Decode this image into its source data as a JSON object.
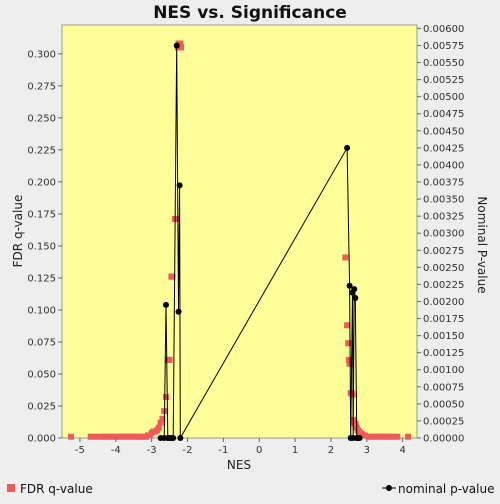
{
  "chart_data": {
    "type": "scatter",
    "title": "NES vs. Significance",
    "xlabel": "NES",
    "ylabel_left": "FDR q-value",
    "ylabel_right": "Nominal P-value",
    "xlim": [
      -5.5,
      4.4
    ],
    "ylim_left": [
      0,
      0.3225
    ],
    "ylim_right": [
      0,
      0.00605
    ],
    "x_ticks": [
      -5,
      -4,
      -3,
      -2,
      -1,
      0,
      1,
      2,
      3,
      4
    ],
    "y_left_ticks": [
      "0.000",
      "0.025",
      "0.050",
      "0.075",
      "0.100",
      "0.125",
      "0.150",
      "0.175",
      "0.200",
      "0.225",
      "0.250",
      "0.275",
      "0.300"
    ],
    "y_right_ticks": [
      "0.00000",
      "0.00025",
      "0.00050",
      "0.00075",
      "0.00100",
      "0.00125",
      "0.00150",
      "0.00175",
      "0.00200",
      "0.00225",
      "0.00250",
      "0.00275",
      "0.00300",
      "0.00325",
      "0.00350",
      "0.00375",
      "0.00400",
      "0.00425",
      "0.00450",
      "0.00475",
      "0.00500",
      "0.00525",
      "0.00550",
      "0.00575",
      "0.00600"
    ],
    "plot_background": "#ffff99",
    "grid": false,
    "legend_placement": "bottom",
    "series": [
      {
        "name": "FDR q-value",
        "axis": "left",
        "style": "square-markers",
        "color": "#f25a5a",
        "x": [
          -5.25,
          -4.7,
          -4.55,
          -4.4,
          -4.3,
          -4.2,
          -4.1,
          -4.0,
          -3.9,
          -3.8,
          -3.7,
          -3.6,
          -3.5,
          -3.4,
          -3.3,
          -3.2,
          -3.15,
          -3.1,
          -3.05,
          -3.0,
          -2.95,
          -2.9,
          -2.85,
          -2.8,
          -2.75,
          -2.7,
          -2.65,
          -2.6,
          -2.55,
          -2.5,
          -2.45,
          -2.42,
          -2.35,
          -2.3,
          -2.27,
          -2.25,
          -2.2,
          -2.18,
          2.4,
          2.45,
          2.48,
          2.5,
          2.52,
          2.55,
          2.58,
          2.6,
          2.62,
          2.65,
          2.68,
          2.7,
          2.72,
          2.75,
          2.78,
          2.82,
          2.88,
          2.95,
          3.05,
          3.15,
          3.25,
          3.35,
          3.45,
          3.55,
          3.65,
          3.75,
          3.85,
          4.15
        ],
        "y": [
          0.001,
          0.001,
          0.001,
          0.001,
          0.001,
          0.001,
          0.001,
          0.001,
          0.001,
          0.001,
          0.001,
          0.001,
          0.001,
          0.001,
          0.001,
          0.001,
          0.001,
          0.002,
          0.002,
          0.004,
          0.005,
          0.005,
          0.006,
          0.008,
          0.012,
          0.015,
          0.021,
          0.032,
          0.061,
          0.061,
          0.126,
          0.126,
          0.171,
          0.171,
          0.305,
          0.308,
          0.308,
          0.305,
          0.141,
          0.088,
          0.074,
          0.061,
          0.058,
          0.035,
          0.035,
          0.034,
          0.014,
          0.012,
          0.011,
          0.009,
          0.008,
          0.006,
          0.005,
          0.004,
          0.003,
          0.002,
          0.001,
          0.001,
          0.001,
          0.001,
          0.001,
          0.001,
          0.001,
          0.001,
          0.001,
          0.001
        ]
      },
      {
        "name": "nominal p-value",
        "axis": "right",
        "style": "line-with-circles",
        "color": "#000000",
        "x": [
          -2.75,
          -2.65,
          -2.6,
          -2.55,
          -2.5,
          -2.45,
          -2.4,
          -2.3,
          -2.25,
          -2.22,
          -2.2,
          2.45,
          2.52,
          2.55,
          2.6,
          2.62,
          2.65,
          2.68,
          2.72,
          2.75,
          2.8
        ],
        "y": [
          0.0,
          0.0,
          0.00195,
          0.0,
          0.0,
          0.0,
          0.0,
          0.00575,
          0.00185,
          0.0037,
          0.0,
          0.00425,
          0.00223,
          0.0,
          0.00213,
          0.0,
          0.00218,
          0.00205,
          0.0,
          0.0,
          0.0
        ]
      }
    ]
  }
}
